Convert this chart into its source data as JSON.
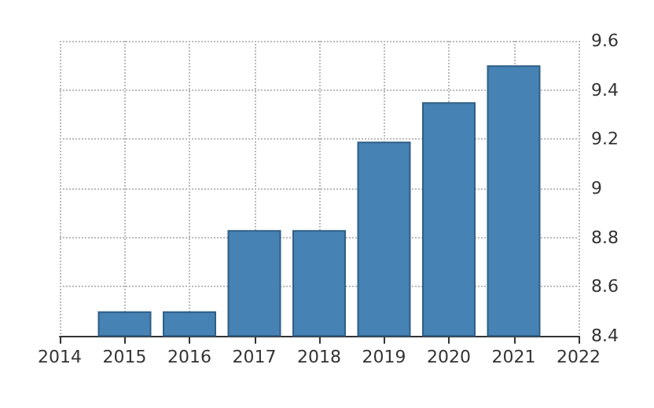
{
  "chart_data": {
    "type": "bar",
    "x": [
      2015,
      2016,
      2017,
      2018,
      2019,
      2020,
      2021
    ],
    "values": [
      8.5,
      8.5,
      8.83,
      8.83,
      9.19,
      9.35,
      9.5
    ],
    "color": "#4682b4",
    "xlim": [
      2014,
      2022
    ],
    "xticks": [
      2014,
      2015,
      2016,
      2017,
      2018,
      2019,
      2020,
      2021,
      2022
    ],
    "ylim": [
      8.4,
      9.6
    ],
    "yticks": [
      8.4,
      8.6,
      8.8,
      9,
      9.2,
      9.4,
      9.6
    ],
    "grid": true
  }
}
